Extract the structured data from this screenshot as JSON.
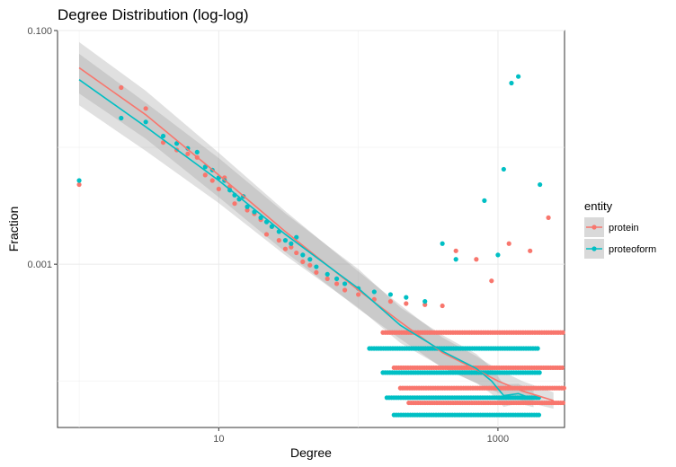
{
  "chart_data": {
    "type": "scatter",
    "title": "Degree Distribution (log-log)",
    "xlabel": "Degree",
    "ylabel": "Fraction",
    "x_scale": "log10",
    "y_scale": "log10",
    "xlim": [
      0.7,
      3000
    ],
    "ylim": [
      4e-05,
      0.1
    ],
    "x_ticks": [
      {
        "value": 10,
        "label": "10"
      },
      {
        "value": 1000,
        "label": "1000"
      }
    ],
    "y_ticks": [
      {
        "value": 0.1,
        "label": "0.100"
      },
      {
        "value": 0.001,
        "label": "0.001"
      }
    ],
    "grid": true,
    "legend": {
      "title": "entity",
      "position": "right"
    },
    "series": [
      {
        "name": "protein",
        "color": "#F8766D",
        "points": [
          [
            1,
            0.0048
          ],
          [
            2,
            0.0325
          ],
          [
            3,
            0.0215
          ],
          [
            4,
            0.011
          ],
          [
            5,
            0.0095
          ],
          [
            6,
            0.0088
          ],
          [
            7,
            0.0082
          ],
          [
            8,
            0.0058
          ],
          [
            9,
            0.0052
          ],
          [
            10,
            0.0044
          ],
          [
            11,
            0.0055
          ],
          [
            12,
            0.0046
          ],
          [
            13,
            0.0033
          ],
          [
            14,
            0.0036
          ],
          [
            15,
            0.0038
          ],
          [
            16,
            0.0029
          ],
          [
            18,
            0.0027
          ],
          [
            20,
            0.0024
          ],
          [
            22,
            0.0018
          ],
          [
            24,
            0.0021
          ],
          [
            27,
            0.0016
          ],
          [
            30,
            0.00135
          ],
          [
            33,
            0.0014
          ],
          [
            36,
            0.00125
          ],
          [
            40,
            0.00105
          ],
          [
            45,
            0.00098
          ],
          [
            50,
            0.00085
          ],
          [
            60,
            0.00075
          ],
          [
            70,
            0.00068
          ],
          [
            80,
            0.0006
          ],
          [
            100,
            0.00055
          ],
          [
            130,
            0.0005
          ],
          [
            170,
            0.00048
          ],
          [
            220,
            0.00046
          ],
          [
            300,
            0.00045
          ],
          [
            400,
            0.00044
          ],
          [
            500,
            0.0013
          ],
          [
            700,
            0.0011
          ],
          [
            900,
            0.00072
          ],
          [
            1200,
            0.0015
          ],
          [
            1700,
            0.0013
          ],
          [
            2300,
            0.0025
          ]
        ],
        "bands": [
          {
            "y": 0.00026,
            "x_from": 150,
            "x_to": 3000
          },
          {
            "y": 0.00013,
            "x_from": 180,
            "x_to": 3000
          },
          {
            "y": 8.7e-05,
            "x_from": 200,
            "x_to": 3000
          },
          {
            "y": 6.5e-05,
            "x_from": 230,
            "x_to": 3000
          }
        ],
        "smooth": [
          [
            1,
            0.048
          ],
          [
            3,
            0.019
          ],
          [
            10,
            0.0058
          ],
          [
            30,
            0.0019
          ],
          [
            100,
            0.0006
          ],
          [
            200,
            0.00032
          ],
          [
            400,
            0.000175
          ],
          [
            700,
            0.000125
          ],
          [
            1000,
            0.0001
          ],
          [
            1500,
            8.2e-05
          ],
          [
            2500,
            6.8e-05
          ]
        ]
      },
      {
        "name": "proteoform",
        "color": "#00BFC4",
        "points": [
          [
            1,
            0.0052
          ],
          [
            2,
            0.0178
          ],
          [
            3,
            0.0165
          ],
          [
            4,
            0.0125
          ],
          [
            5,
            0.0108
          ],
          [
            6,
            0.0098
          ],
          [
            7,
            0.0091
          ],
          [
            8,
            0.0068
          ],
          [
            9,
            0.0064
          ],
          [
            10,
            0.0055
          ],
          [
            11,
            0.0052
          ],
          [
            12,
            0.0043
          ],
          [
            13,
            0.0039
          ],
          [
            14,
            0.0036
          ],
          [
            15,
            0.0038
          ],
          [
            16,
            0.0031
          ],
          [
            18,
            0.0028
          ],
          [
            20,
            0.0025
          ],
          [
            22,
            0.0023
          ],
          [
            24,
            0.0021
          ],
          [
            27,
            0.0019
          ],
          [
            30,
            0.0016
          ],
          [
            33,
            0.0015
          ],
          [
            36,
            0.0017
          ],
          [
            40,
            0.0012
          ],
          [
            45,
            0.0011
          ],
          [
            50,
            0.00095
          ],
          [
            60,
            0.00082
          ],
          [
            70,
            0.00075
          ],
          [
            80,
            0.00068
          ],
          [
            100,
            0.00062
          ],
          [
            130,
            0.00058
          ],
          [
            170,
            0.00055
          ],
          [
            220,
            0.00052
          ],
          [
            300,
            0.00048
          ],
          [
            400,
            0.0015
          ],
          [
            500,
            0.0011
          ],
          [
            800,
            0.0035
          ],
          [
            1000,
            0.0012
          ],
          [
            1100,
            0.0065
          ],
          [
            1250,
            0.0355
          ],
          [
            1400,
            0.0404
          ],
          [
            2000,
            0.0048
          ]
        ],
        "bands": [
          {
            "y": 0.00019,
            "x_from": 120,
            "x_to": 2000
          },
          {
            "y": 0.000118,
            "x_from": 150,
            "x_to": 2000
          },
          {
            "y": 7.2e-05,
            "x_from": 160,
            "x_to": 2000
          },
          {
            "y": 5.12e-05,
            "x_from": 180,
            "x_to": 2000
          }
        ],
        "smooth": [
          [
            1,
            0.038
          ],
          [
            3,
            0.015
          ],
          [
            10,
            0.0052
          ],
          [
            30,
            0.0018
          ],
          [
            100,
            0.00062
          ],
          [
            200,
            0.0003
          ],
          [
            400,
            0.00018
          ],
          [
            700,
            0.000128
          ],
          [
            900,
            0.0001
          ],
          [
            1100,
            7.5e-05
          ],
          [
            1400,
            7.8e-05
          ],
          [
            1800,
            7e-05
          ]
        ]
      }
    ]
  }
}
